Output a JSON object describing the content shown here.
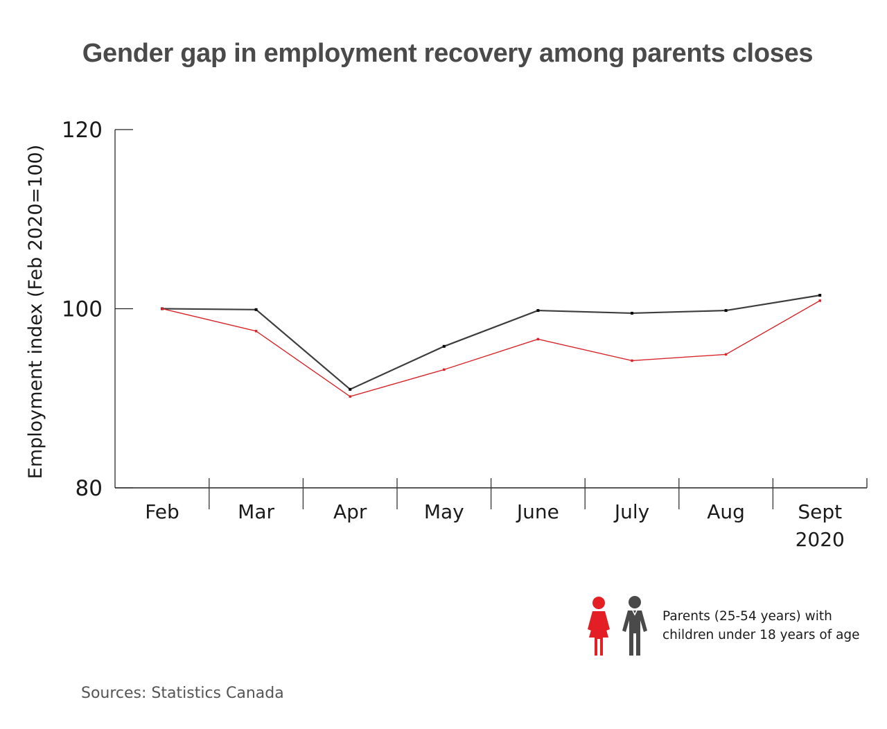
{
  "title": "Gender gap in employment recovery among parents closes",
  "source": "Sources: Statistics Canada",
  "legend": {
    "line1": "Parents (25-54 years) with",
    "line2": "children under 18 years of age",
    "icons": [
      {
        "name": "woman-icon",
        "color": "#e31e24"
      },
      {
        "name": "man-icon",
        "color": "#4a4a4a"
      }
    ]
  },
  "chart_data": {
    "type": "line",
    "title": "Gender gap in employment recovery among parents closes",
    "xlabel": "",
    "ylabel": "Employment index (Feb 2020=100)",
    "categories": [
      "Feb",
      "Mar",
      "Apr",
      "May",
      "June",
      "July",
      "Aug",
      "Sept"
    ],
    "category_sublabels": [
      "",
      "",
      "",
      "",
      "",
      "",
      "",
      "2020"
    ],
    "ylim": [
      80,
      120
    ],
    "yticks": [
      80,
      100,
      120
    ],
    "grid": false,
    "legend_position": "bottom-right",
    "series": [
      {
        "name": "Fathers",
        "color": "#3d3d3d",
        "values": [
          100.0,
          99.9,
          91.0,
          95.8,
          99.8,
          99.5,
          99.8,
          101.5
        ]
      },
      {
        "name": "Mothers",
        "color": "#d7262b",
        "values": [
          100.0,
          97.5,
          90.2,
          93.2,
          96.6,
          94.2,
          94.9,
          100.9
        ]
      }
    ]
  }
}
